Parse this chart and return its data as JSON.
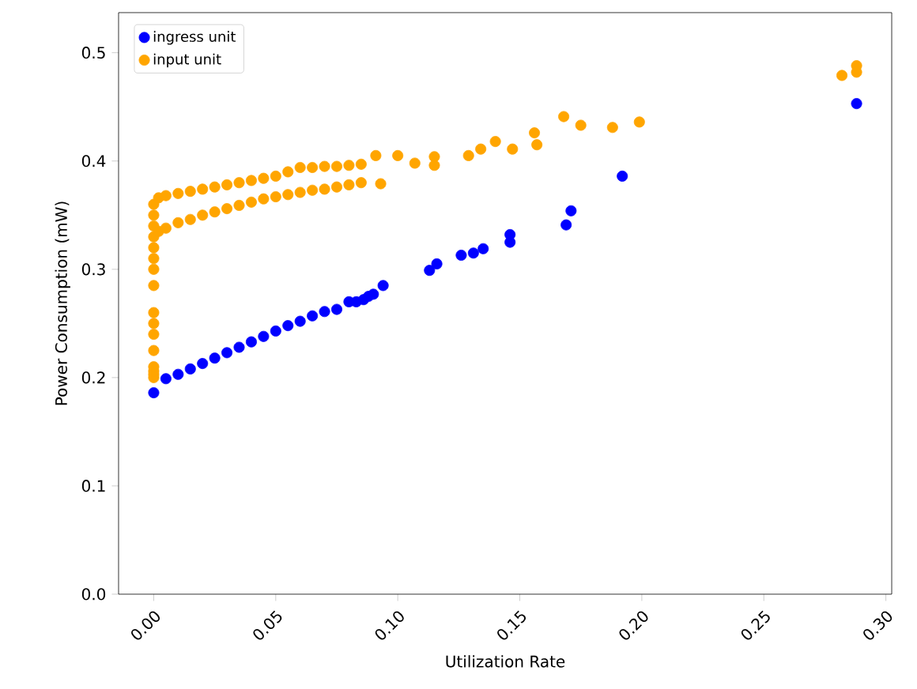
{
  "chart_data": {
    "type": "scatter",
    "xlabel": "Utilization Rate",
    "ylabel": "Power Consumption (mW)",
    "xlim": [
      -0.0144,
      0.3024
    ],
    "ylim": [
      0,
      0.537
    ],
    "xticks": [
      {
        "value": 0,
        "label": "0.00"
      },
      {
        "value": 0.05,
        "label": "0.05"
      },
      {
        "value": 0.1,
        "label": "0.10"
      },
      {
        "value": 0.15,
        "label": "0.15"
      },
      {
        "value": 0.2,
        "label": "0.20"
      },
      {
        "value": 0.25,
        "label": "0.25"
      },
      {
        "value": 0.3,
        "label": "0.30"
      }
    ],
    "yticks": [
      {
        "value": 0,
        "label": "0.0"
      },
      {
        "value": 0.1,
        "label": "0.1"
      },
      {
        "value": 0.2,
        "label": "0.2"
      },
      {
        "value": 0.3,
        "label": "0.3"
      },
      {
        "value": 0.4,
        "label": "0.4"
      },
      {
        "value": 0.5,
        "label": "0.5"
      }
    ],
    "legend": "top left",
    "marker": "circle",
    "grid": false,
    "series": [
      {
        "name": "ingress unit",
        "color": "#0000ff",
        "x": [
          0,
          0.005,
          0.01,
          0.015,
          0.02,
          0.025,
          0.03,
          0.035,
          0.04,
          0.045,
          0.05,
          0.055,
          0.06,
          0.065,
          0.07,
          0.075,
          0.08,
          0.083,
          0.086,
          0.088,
          0.09,
          0.094,
          0.113,
          0.116,
          0.126,
          0.131,
          0.135,
          0.146,
          0.146,
          0.169,
          0.171,
          0.192,
          0.288
        ],
        "values": [
          0.186,
          0.199,
          0.203,
          0.208,
          0.213,
          0.218,
          0.223,
          0.228,
          0.233,
          0.238,
          0.243,
          0.248,
          0.252,
          0.257,
          0.261,
          0.263,
          0.27,
          0.27,
          0.272,
          0.275,
          0.277,
          0.285,
          0.299,
          0.305,
          0.313,
          0.315,
          0.319,
          0.325,
          0.332,
          0.341,
          0.354,
          0.386,
          0.453
        ]
      },
      {
        "name": "input unit",
        "color": "#ffa500",
        "x": [
          0,
          0,
          0,
          0,
          0,
          0,
          0,
          0,
          0,
          0,
          0,
          0,
          0,
          0,
          0,
          0,
          0.002,
          0.002,
          0.005,
          0.005,
          0.01,
          0.01,
          0.015,
          0.015,
          0.02,
          0.02,
          0.025,
          0.025,
          0.03,
          0.03,
          0.035,
          0.035,
          0.04,
          0.04,
          0.045,
          0.045,
          0.05,
          0.05,
          0.055,
          0.055,
          0.06,
          0.06,
          0.065,
          0.065,
          0.07,
          0.07,
          0.075,
          0.075,
          0.08,
          0.08,
          0.085,
          0.085,
          0.091,
          0.093,
          0.1,
          0.107,
          0.115,
          0.115,
          0.129,
          0.134,
          0.14,
          0.147,
          0.156,
          0.157,
          0.168,
          0.175,
          0.188,
          0.199,
          0.282,
          0.288,
          0.288
        ],
        "values": [
          0.2,
          0.203,
          0.206,
          0.21,
          0.225,
          0.24,
          0.25,
          0.26,
          0.285,
          0.3,
          0.31,
          0.32,
          0.33,
          0.34,
          0.35,
          0.36,
          0.366,
          0.335,
          0.368,
          0.338,
          0.37,
          0.343,
          0.372,
          0.346,
          0.374,
          0.35,
          0.376,
          0.353,
          0.378,
          0.356,
          0.38,
          0.359,
          0.382,
          0.362,
          0.384,
          0.365,
          0.386,
          0.367,
          0.39,
          0.369,
          0.394,
          0.371,
          0.394,
          0.373,
          0.395,
          0.374,
          0.395,
          0.376,
          0.396,
          0.378,
          0.397,
          0.38,
          0.405,
          0.379,
          0.405,
          0.398,
          0.396,
          0.404,
          0.405,
          0.411,
          0.418,
          0.411,
          0.426,
          0.415,
          0.441,
          0.433,
          0.431,
          0.436,
          0.479,
          0.488,
          0.482
        ]
      }
    ]
  }
}
